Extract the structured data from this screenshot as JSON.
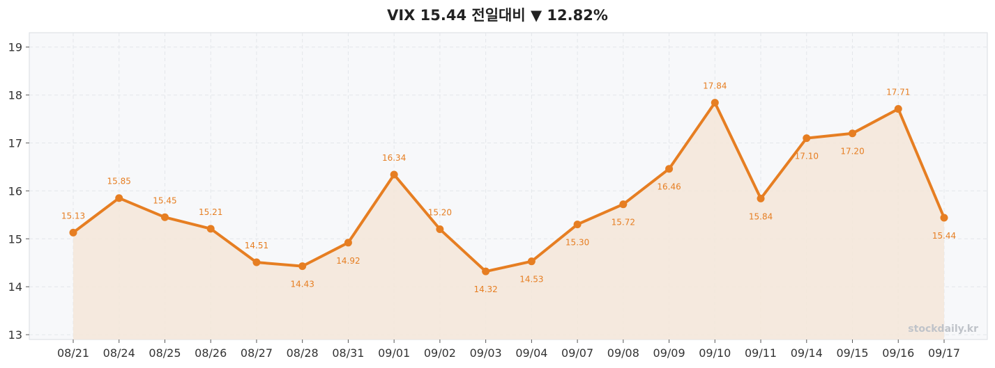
{
  "chart_data": {
    "type": "line",
    "title": "VIX  15.44  전일대비 ▼ 12.82%",
    "watermark": "stockdaily.kr",
    "categories": [
      "08/21",
      "08/24",
      "08/25",
      "08/26",
      "08/27",
      "08/28",
      "08/31",
      "09/01",
      "09/02",
      "09/03",
      "09/04",
      "09/07",
      "09/08",
      "09/09",
      "09/10",
      "09/11",
      "09/14",
      "09/15",
      "09/16",
      "09/17"
    ],
    "series": [
      {
        "values": [
          15.13,
          15.85,
          15.45,
          15.21,
          14.51,
          14.43,
          14.92,
          16.34,
          15.2,
          14.32,
          14.53,
          15.3,
          15.72,
          16.46,
          17.84,
          15.84,
          17.1,
          17.2,
          17.71,
          15.44
        ],
        "labels": [
          "15.13",
          "15.85",
          "15.45",
          "15.21",
          "14.51",
          "14.43",
          "14.92",
          "16.34",
          "15.20",
          "14.32",
          "14.53",
          "15.30",
          "15.72",
          "16.46",
          "17.84",
          "15.84",
          "17.10",
          "17.20",
          "17.71",
          "15.44"
        ]
      }
    ],
    "ylim": [
      12.9,
      19.3
    ],
    "yticks": [
      13,
      14,
      15,
      16,
      17,
      18,
      19
    ],
    "ytick_labels": [
      "13",
      "14",
      "15",
      "16",
      "17",
      "18",
      "19"
    ],
    "xlabel": "",
    "ylabel": "",
    "grid": true,
    "area_fill": true,
    "colors": {
      "line": "#e67e22",
      "fill": "#f5e6d8",
      "plot_bg": "#f7f8fa",
      "grid": "#e3e6ea"
    }
  }
}
